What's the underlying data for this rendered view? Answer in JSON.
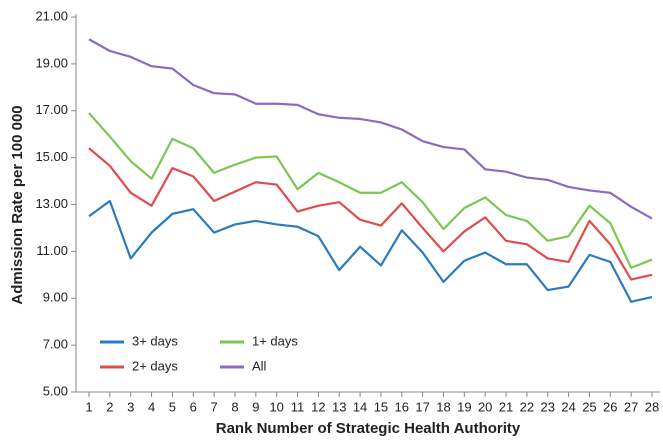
{
  "chart_data": {
    "type": "line",
    "xlabel": "Rank Number of Strategic Health Authority",
    "ylabel": "Admission Rate per 100 000",
    "categories": [
      "1",
      "2",
      "3",
      "4",
      "5",
      "6",
      "7",
      "8",
      "9",
      "10",
      "11",
      "12",
      "13",
      "14",
      "15",
      "16",
      "17",
      "18",
      "19",
      "20",
      "21",
      "22",
      "23",
      "24",
      "25",
      "26",
      "27",
      "28"
    ],
    "ylim": [
      5,
      21
    ],
    "yticks": [
      {
        "value": 5,
        "label": "5.00"
      },
      {
        "value": 7,
        "label": "7.00"
      },
      {
        "value": 9,
        "label": "9.00"
      },
      {
        "value": 11,
        "label": "11.00"
      },
      {
        "value": 13,
        "label": "13.00"
      },
      {
        "value": 15,
        "label": "15.00"
      },
      {
        "value": 17,
        "label": "17.00"
      },
      {
        "value": 19,
        "label": "19.00"
      },
      {
        "value": 21,
        "label": "21.00"
      }
    ],
    "series": [
      {
        "name": "3+ days",
        "color": "#2a7bbf",
        "values": [
          12.5,
          13.15,
          10.7,
          11.8,
          12.6,
          12.8,
          11.8,
          12.15,
          12.3,
          12.15,
          12.05,
          11.65,
          10.2,
          11.2,
          10.4,
          11.9,
          10.95,
          9.7,
          10.6,
          10.95,
          10.45,
          10.45,
          9.35,
          9.5,
          10.85,
          10.55,
          8.85,
          9.05
        ]
      },
      {
        "name": "2+ days",
        "color": "#e04b4b",
        "values": [
          15.4,
          14.65,
          13.5,
          12.95,
          14.55,
          14.2,
          13.15,
          13.55,
          13.95,
          13.85,
          12.7,
          12.95,
          13.1,
          12.35,
          12.1,
          13.05,
          12.0,
          11.0,
          11.85,
          12.45,
          11.45,
          11.3,
          10.7,
          10.55,
          12.3,
          11.3,
          9.8,
          10.0
        ]
      },
      {
        "name": "1+ days",
        "color": "#7cc653",
        "values": [
          16.9,
          15.9,
          14.85,
          14.1,
          15.8,
          15.4,
          14.35,
          14.7,
          15.0,
          15.05,
          13.65,
          14.35,
          13.95,
          13.5,
          13.5,
          13.95,
          13.1,
          11.95,
          12.85,
          13.3,
          12.55,
          12.3,
          11.45,
          11.65,
          12.95,
          12.2,
          10.3,
          10.65
        ]
      },
      {
        "name": "All",
        "color": "#8a6bbf",
        "values": [
          20.05,
          19.55,
          19.3,
          18.9,
          18.8,
          18.1,
          17.75,
          17.7,
          17.3,
          17.3,
          17.25,
          16.85,
          16.7,
          16.65,
          16.5,
          16.2,
          15.7,
          15.45,
          15.35,
          14.5,
          14.4,
          14.15,
          14.05,
          13.75,
          13.6,
          13.5,
          12.9,
          12.4
        ]
      }
    ]
  }
}
